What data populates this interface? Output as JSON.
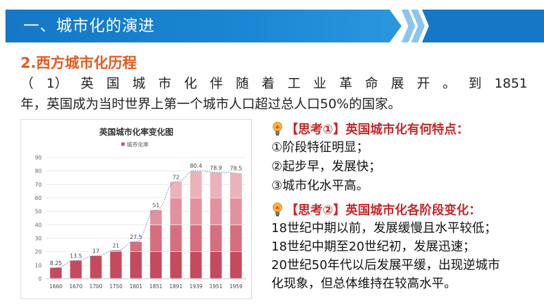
{
  "header": {
    "title": "一、城市化的演进"
  },
  "section": {
    "subtitle": "2.西方城市化历程"
  },
  "intro": {
    "line1_parts": [
      "（",
      "1）",
      "英",
      "国",
      "城",
      "市",
      "化",
      "伴",
      "随",
      "着",
      "工",
      "业",
      "革",
      "命",
      "展",
      "开",
      "。",
      "到",
      "1851"
    ],
    "line2": "年，英国成为当时世界上第一个城市人口超过总人口50%的国家。"
  },
  "think1": {
    "heading": "【思考①】英国城市化有何特点：",
    "points": [
      "①阶段特征明显；",
      "②起步早，发展快；",
      "③城市化水平高。"
    ]
  },
  "think2": {
    "heading": "【思考②】英国城市化各阶段变化：",
    "lines": [
      "18世纪中期以前，发展缓慢且水平较低；",
      "18世纪中期至20世纪初，发展迅速；",
      "20世纪50年代以后发展平缓，出现逆城市",
      "化现象，但总体维持在较高水平。"
    ]
  },
  "colors": {
    "banner": "#1577c6",
    "subtitle": "#e5591f",
    "think_heading": "#c62828",
    "bar": "#e8a1aa",
    "bar_dark": "#d05a6c"
  },
  "icons": {
    "think": "lightbulb-icon"
  },
  "chart_data": {
    "type": "bar",
    "title": "英国城市化率变化图",
    "legend": "城市化率",
    "legend_position": "top-left",
    "categories": [
      "1660",
      "1670",
      "1700",
      "1750",
      "1801",
      "1851",
      "1891",
      "1939",
      "1951",
      "1959"
    ],
    "values": [
      8.25,
      13.5,
      17,
      21,
      27.5,
      51,
      72,
      80.4,
      78.9,
      78.5
    ],
    "data_labels": [
      "8.25",
      "13.5",
      "17",
      "21",
      "27.5",
      "51",
      "72",
      "80.4",
      "78.9",
      "78.5"
    ],
    "y_ticks": [
      "0",
      "10",
      "20",
      "30",
      "40",
      "50",
      "60",
      "70",
      "80",
      "90"
    ],
    "ylim": [
      0,
      90
    ],
    "grid": true,
    "trendline": "dotted"
  }
}
